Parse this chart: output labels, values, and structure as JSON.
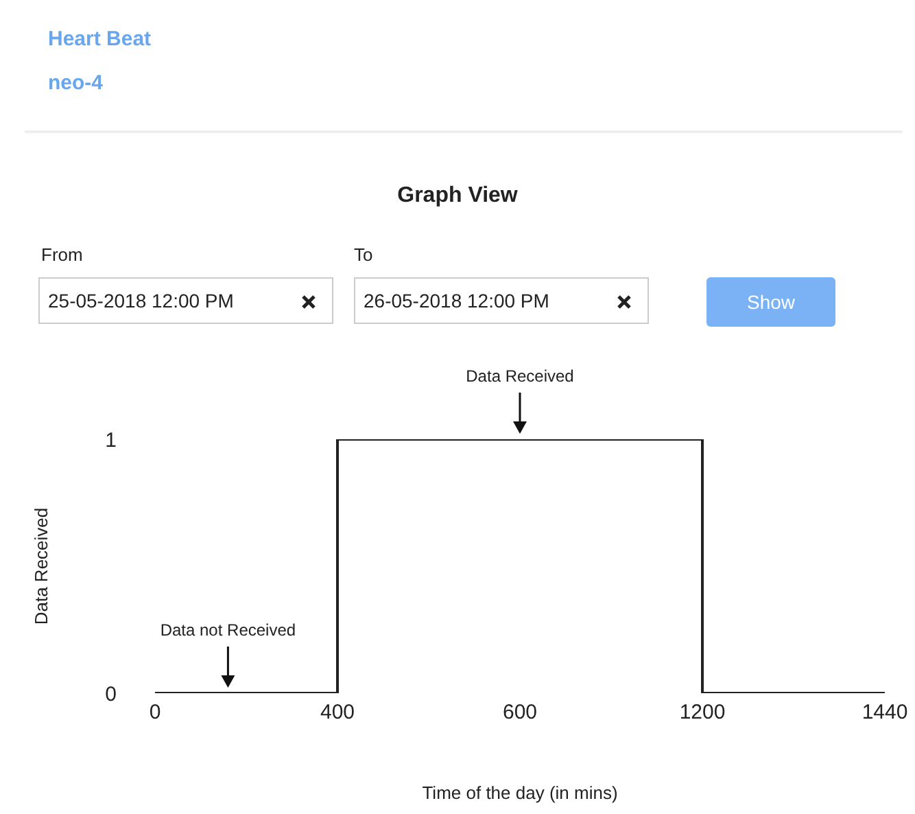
{
  "chart_data": {
    "type": "step",
    "title": "Graph View",
    "xlabel": "Time of the day (in mins)",
    "ylabel": "Data Received",
    "categories": [
      "0",
      "400",
      "600",
      "1200",
      "1440"
    ],
    "series": [
      {
        "color": "#222222",
        "values": [
          0,
          1,
          1,
          0,
          0
        ]
      }
    ],
    "ylim": [
      0,
      1
    ],
    "yticks": [
      0,
      1
    ],
    "grid": false,
    "legend": false,
    "marker": "none",
    "line_style": "solid",
    "annotations": [
      "Heart Beat",
      "neo-4",
      "From",
      "To",
      "25-05-2018 12:00 PM",
      "26-05-2018 12:00 PM",
      "Show",
      "Data Received",
      "Data not Received"
    ]
  }
}
